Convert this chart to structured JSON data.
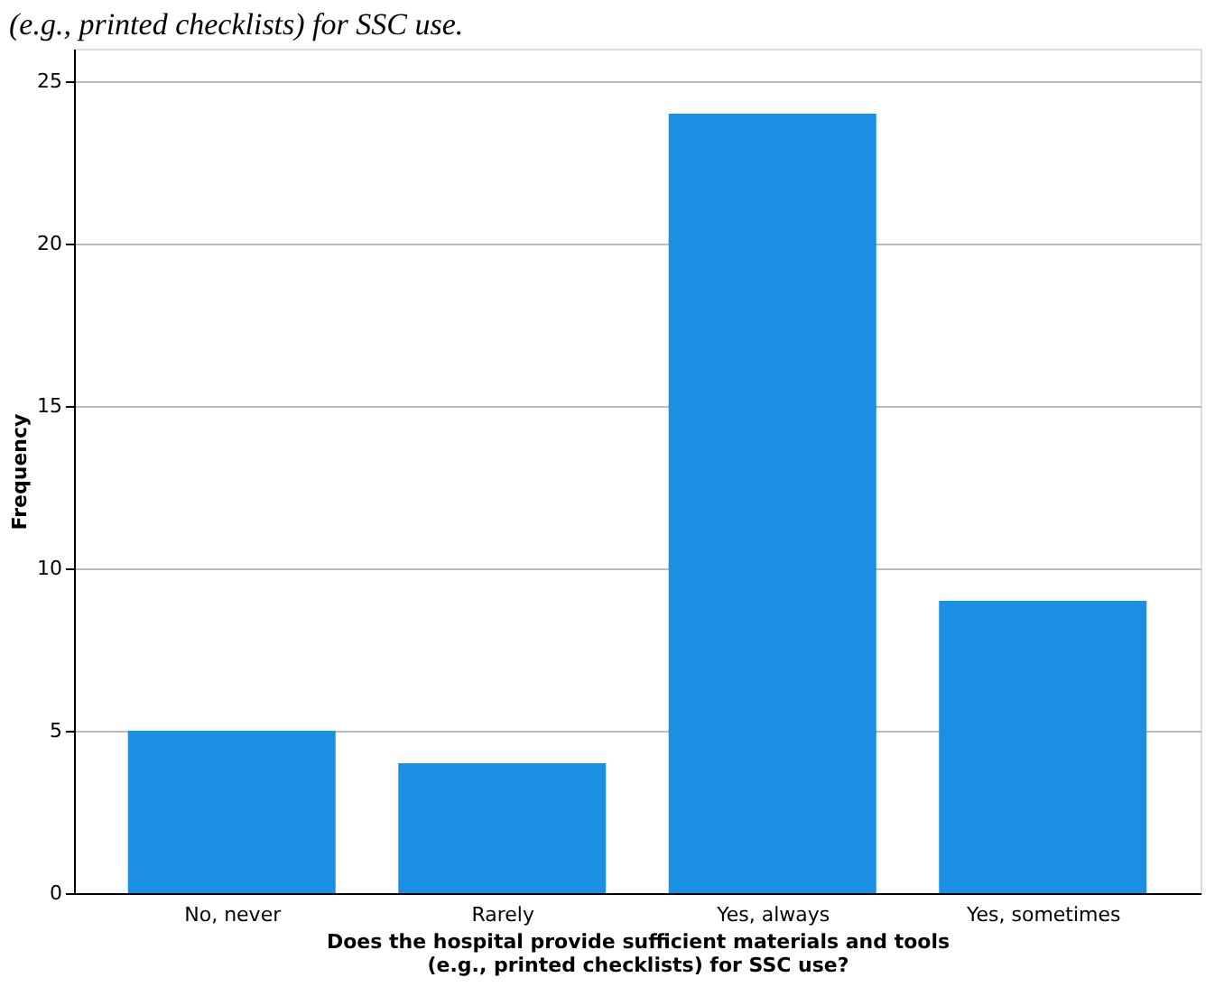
{
  "chart_data": {
    "type": "bar",
    "title": "(e.g., printed checklists) for SSC use.",
    "categories": [
      "No, never",
      "Rarely",
      "Yes, always",
      "Yes, sometimes"
    ],
    "values": [
      5,
      4,
      24,
      9
    ],
    "color": "#1a8fe3",
    "xlabel": "Does the hospital provide sufficient materials and tools (e.g., printed checklists) for SSC use?",
    "ylabel": "Frequency",
    "ylim": [
      0,
      26
    ],
    "yticks": [
      0,
      5,
      10,
      15,
      20,
      25
    ],
    "grid": "y"
  }
}
